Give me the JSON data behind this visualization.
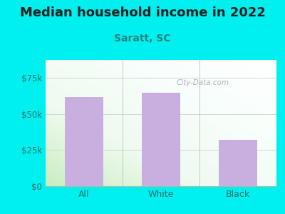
{
  "title": "Median household income in 2022",
  "subtitle": "Saratt, SC",
  "categories": [
    "All",
    "White",
    "Black"
  ],
  "values": [
    62000,
    65000,
    32000
  ],
  "bar_color": "#c9aee0",
  "background_color": "#00efef",
  "title_color": "#222222",
  "title_fontsize": 13,
  "subtitle_fontsize": 10,
  "tick_label_color": "#2a7070",
  "subtitle_color": "#2a8080",
  "ylim": [
    0,
    87500
  ],
  "yticks": [
    0,
    25000,
    50000,
    75000
  ],
  "ytick_labels": [
    "$0",
    "$25k",
    "$50k",
    "$75k"
  ],
  "watermark": "City-Data.com",
  "grad_colors": [
    "#d8f0d0",
    "#f5fbf5",
    "#eef8f8",
    "#f8fdfd"
  ],
  "grid_color": "#ccddcc",
  "sep_color": "#bbccbb"
}
